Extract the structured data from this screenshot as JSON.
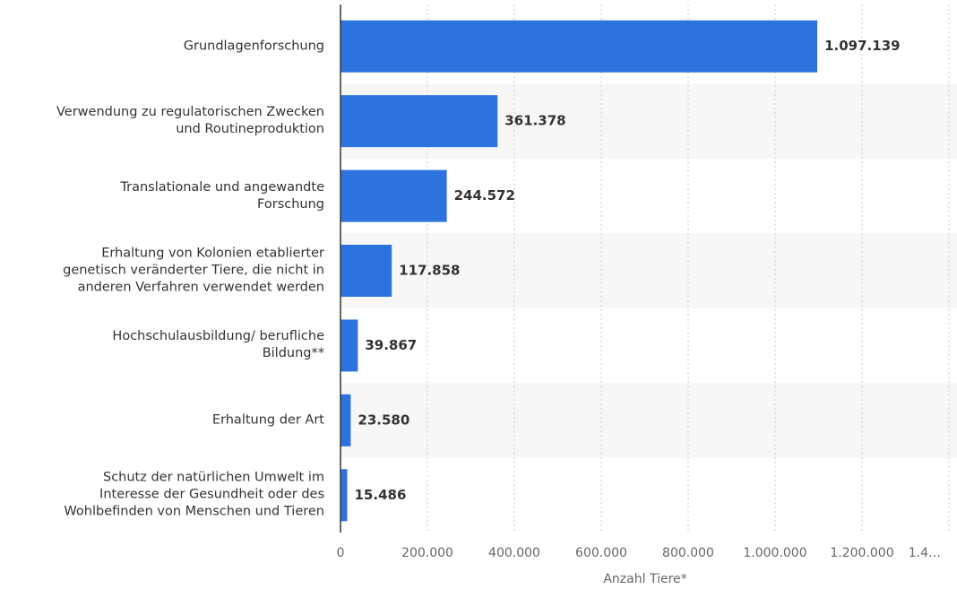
{
  "chart_data": {
    "type": "bar",
    "orientation": "horizontal",
    "categories": [
      "Grundlagenforschung",
      "Verwendung zu regulatorischen Zwecken\nund Routineproduktion",
      "Translationale und angewandte\nForschung",
      "Erhaltung von Kolonien etablierter\ngenetisch veränderter Tiere, die nicht in\nanderen Verfahren verwendet werden",
      "Hochschulausbildung/ berufliche\nBildung**",
      "Erhaltung der Art",
      "Schutz der natürlichen Umwelt im\nInteresse der Gesundheit oder des\nWohlbefinden von Menschen und Tieren"
    ],
    "values": [
      1097139,
      361378,
      244572,
      117858,
      39867,
      23580,
      15486
    ],
    "value_labels": [
      "1.097.139",
      "361.378",
      "244.572",
      "117.858",
      "39.867",
      "23.580",
      "15.486"
    ],
    "color": "#2c73de",
    "x_label": "Anzahl Tiere*",
    "xlim": [
      0,
      1400000
    ],
    "xticks": [
      0,
      {
        "value": 200000,
        "label": "200.000"
      },
      {
        "value": 400000,
        "label": "400.000"
      },
      {
        "value": 600000,
        "label": "600.000"
      },
      {
        "value": 800000,
        "label": "800.000"
      },
      {
        "value": 1000000,
        "label": "1.000.000"
      },
      {
        "value": 1200000,
        "label": "1.200.000"
      },
      {
        "value": 1400000,
        "label": "1.4…"
      }
    ],
    "grid": true
  }
}
